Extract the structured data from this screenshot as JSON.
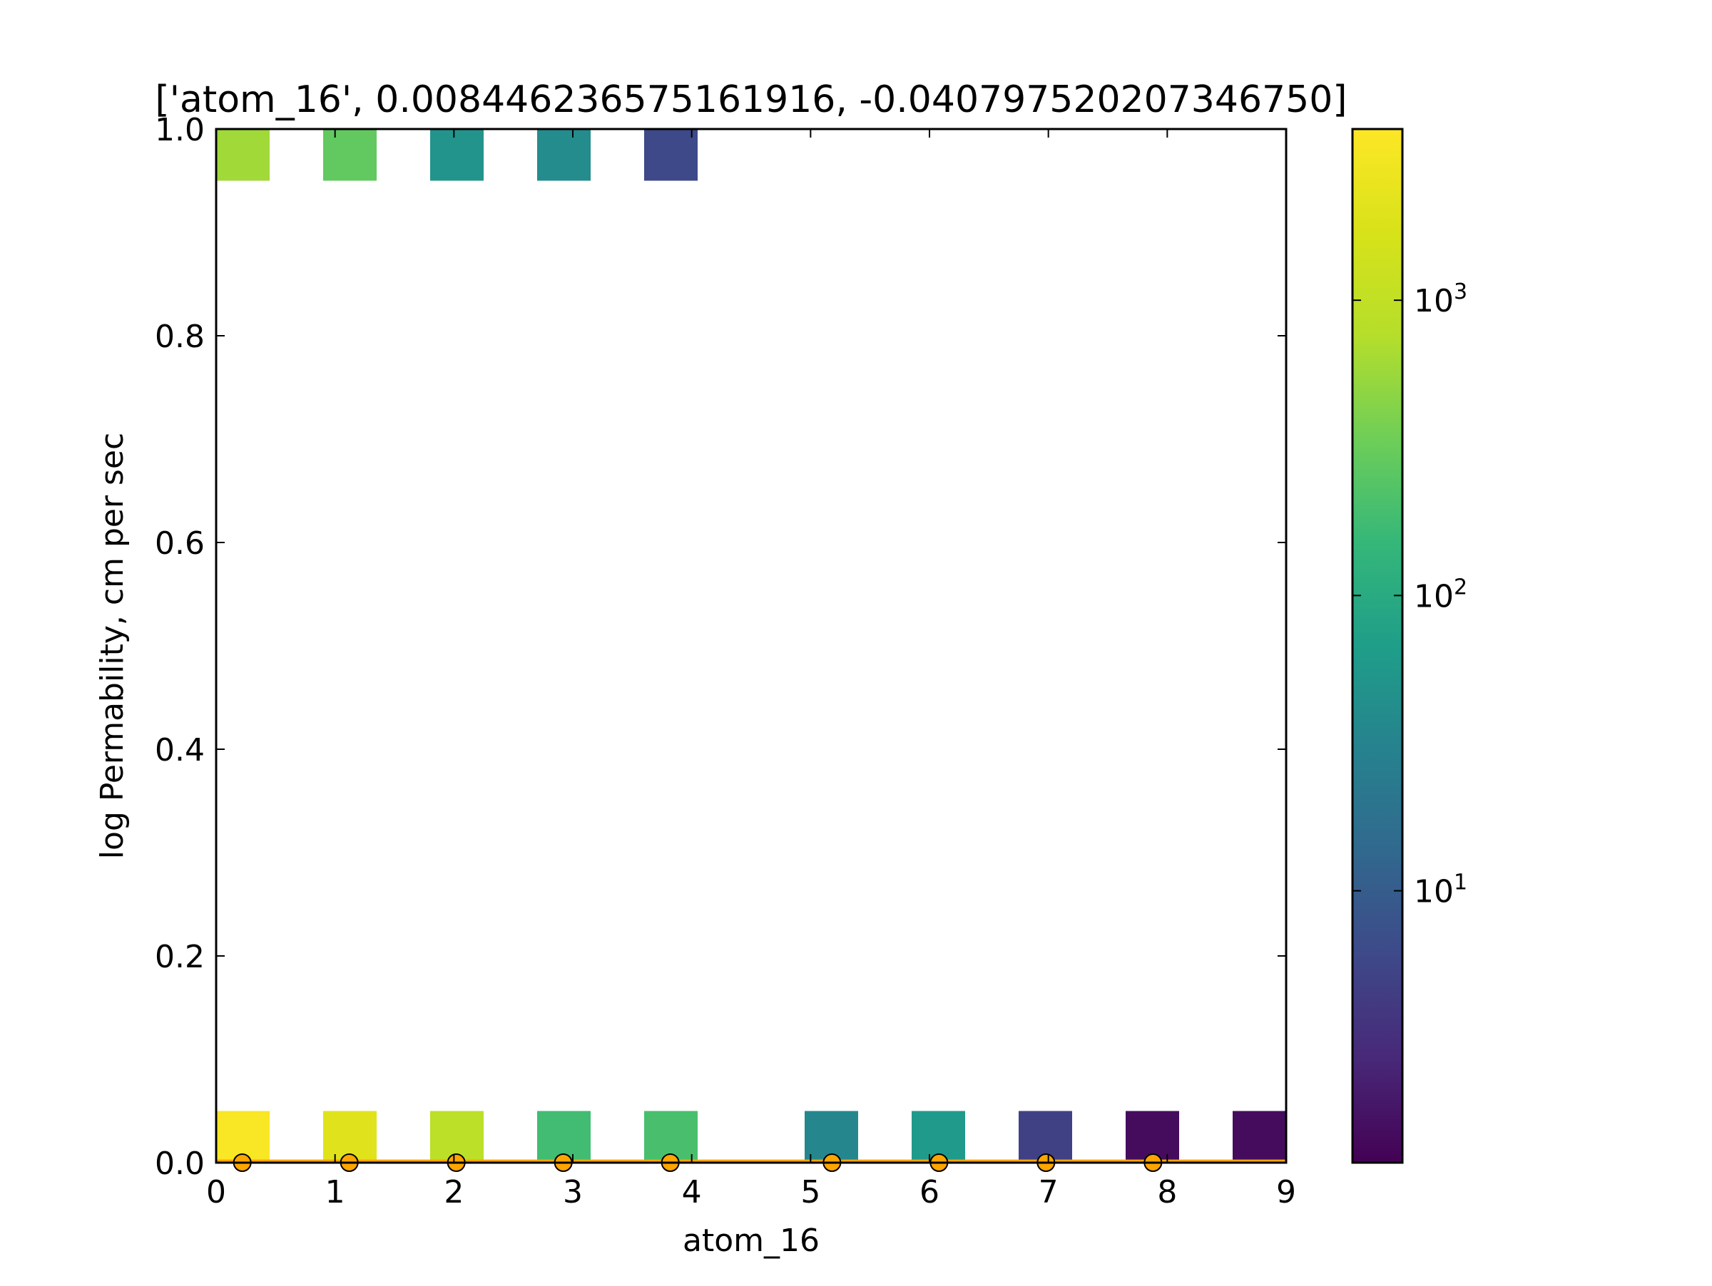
{
  "chart_data": {
    "type": "heatmap",
    "title": "['atom_16', 0.008446236575161916, -0.040797520207346750]",
    "xlabel": "atom_16",
    "ylabel": "log Permability, cm per sec",
    "xlim": [
      0,
      9
    ],
    "ylim": [
      0.0,
      1.0
    ],
    "x_ticks": [
      "0",
      "1",
      "2",
      "3",
      "4",
      "5",
      "6",
      "7",
      "8",
      "9"
    ],
    "y_ticks": [
      "0.0",
      "0.2",
      "0.4",
      "0.6",
      "0.8",
      "1.0"
    ],
    "cell_width": 0.45,
    "cell_height": 0.05,
    "cells": [
      {
        "x": 0.0,
        "y": 0.95,
        "count": 600
      },
      {
        "x": 0.9,
        "y": 0.95,
        "count": 280
      },
      {
        "x": 1.8,
        "y": 0.95,
        "count": 50
      },
      {
        "x": 2.7,
        "y": 0.95,
        "count": 40
      },
      {
        "x": 3.6,
        "y": 0.95,
        "count": 6
      },
      {
        "x": 0.0,
        "y": 0.0,
        "count": 3500
      },
      {
        "x": 0.9,
        "y": 0.0,
        "count": 2000
      },
      {
        "x": 1.8,
        "y": 0.0,
        "count": 900
      },
      {
        "x": 2.7,
        "y": 0.0,
        "count": 180
      },
      {
        "x": 3.6,
        "y": 0.0,
        "count": 200
      },
      {
        "x": 4.95,
        "y": 0.0,
        "count": 35
      },
      {
        "x": 5.85,
        "y": 0.0,
        "count": 60
      },
      {
        "x": 6.75,
        "y": 0.0,
        "count": 5
      },
      {
        "x": 7.65,
        "y": 0.0,
        "count": 1.5
      },
      {
        "x": 8.55,
        "y": 0.0,
        "count": 1.5
      }
    ],
    "points": {
      "x": [
        0.22,
        1.12,
        2.02,
        2.92,
        3.82,
        5.18,
        6.08,
        6.98,
        7.88
      ],
      "y": [
        0.0,
        0.0,
        0.0,
        0.0,
        0.0,
        0.0,
        0.0,
        0.0,
        0.0
      ],
      "color": "#ffa500"
    },
    "fit_line": {
      "x": [
        0,
        9
      ],
      "y": [
        0.0016,
        0.0016
      ],
      "color": "#ffa500"
    },
    "colorbar": {
      "scale": "log",
      "range": [
        1.2,
        3800
      ],
      "ticks": [
        {
          "base": "10",
          "exp": "1",
          "value": 10
        },
        {
          "base": "10",
          "exp": "2",
          "value": 100
        },
        {
          "base": "10",
          "exp": "3",
          "value": 1000
        }
      ],
      "colormap": "viridis"
    }
  }
}
